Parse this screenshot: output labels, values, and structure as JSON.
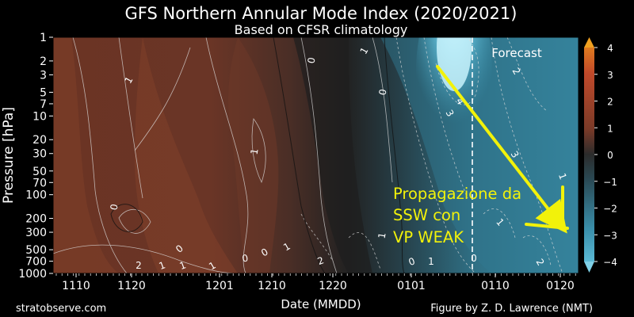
{
  "chart_data": {
    "type": "heatmap",
    "title": "GFS Northern Annular Mode Index (2020/2021)",
    "subtitle": "Based on CFSR climatology",
    "xlabel": "Date (MMDD)",
    "ylabel": "Pressure [hPa]",
    "x_ticks": [
      "1110",
      "1120",
      "1201",
      "1210",
      "1220",
      "0101",
      "0110",
      "0120"
    ],
    "y_ticks": [
      1,
      2,
      3,
      5,
      7,
      10,
      20,
      30,
      50,
      70,
      100,
      200,
      300,
      500,
      700,
      1000
    ],
    "ylim": [
      1000,
      1
    ],
    "y_scale": "log",
    "colorbar": {
      "ticks": [
        4,
        3,
        2,
        1,
        0,
        -1,
        -2,
        -3,
        -4
      ],
      "tick_labels": [
        "4",
        "3",
        "2",
        "1",
        "0",
        "−1",
        "−2",
        "−3",
        "−4"
      ],
      "range": [
        -4,
        4
      ],
      "positive_color": "#c0492a",
      "neutral_color": "#2b2b2b",
      "negative_color": "#4aa8c6",
      "extreme_negative_color": "#a8e6f5"
    },
    "forecast_label": "Forecast",
    "contour_labels": [
      "1",
      "0",
      "1",
      "0",
      "1",
      "0",
      "0",
      "1",
      "2",
      "1",
      "1",
      "0",
      "0",
      "1",
      "2",
      "1",
      "0",
      "0",
      "4",
      "3",
      "3",
      "2",
      "1",
      "2",
      "1",
      "2",
      "1"
    ],
    "annotation": {
      "lines": [
        "Propagazione da",
        "SSW con",
        "VP WEAK"
      ],
      "color": "#f2f20a"
    },
    "footer_left": "stratobserve.com",
    "footer_right": "Figure by Z. D. Lawrence (NMT)"
  }
}
